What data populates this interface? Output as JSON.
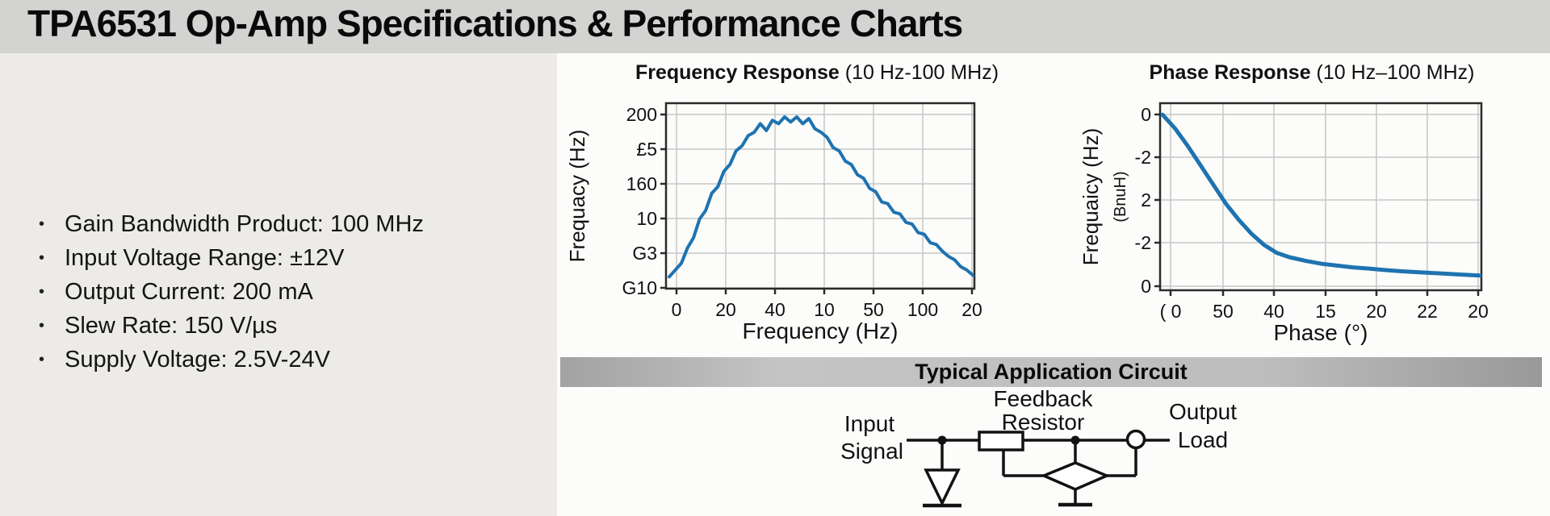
{
  "page": {
    "title": "TPA6531 Op-Amp Specifications & Performance Charts"
  },
  "specs": {
    "bullet": "•",
    "items": [
      "Gain Bandwidth Product: 100 MHz",
      "Input Voltage Range: ±12V",
      "Output Current: 200 mA",
      "Slew Rate: 150 V/µs",
      "Supply Voltage: 2.5V-24V"
    ]
  },
  "colors": {
    "titlebar_bg": "#d3d3d1",
    "panel_bg": "#ecebe8",
    "content_bg": "#fcfcfa",
    "banner_bg": "#b9b9b9",
    "curve_blue": "#1e73b0",
    "grid": "#c7c7c7",
    "frame": "#2b2b2b",
    "text": "#111111"
  },
  "chart_data": [
    {
      "type": "line",
      "title_bold": "Frequency Response",
      "title_rest": " (10 Hz-100 MHz)",
      "xlabel": "Frequency (Hz)",
      "ylabel": "Frequacy (Hz)",
      "x_ticks": [
        "0",
        "20",
        "40",
        "10",
        "50",
        "100",
        "20"
      ],
      "y_ticks": [
        "200",
        "£5",
        "160",
        "10",
        "G3",
        "G10"
      ],
      "grid": true,
      "legend": "none",
      "line_color": "#1e73b0",
      "points_x": [
        0,
        0.02,
        0.04,
        0.06,
        0.08,
        0.1,
        0.12,
        0.14,
        0.16,
        0.18,
        0.2,
        0.22,
        0.24,
        0.26,
        0.28,
        0.3,
        0.32,
        0.34,
        0.36,
        0.38,
        0.4,
        0.42,
        0.44,
        0.46,
        0.48,
        0.5,
        0.52,
        0.54,
        0.56,
        0.58,
        0.6,
        0.62,
        0.64,
        0.66,
        0.68,
        0.7,
        0.72,
        0.74,
        0.76,
        0.78,
        0.8,
        0.82,
        0.84,
        0.86,
        0.88,
        0.9,
        0.92,
        0.94,
        0.96,
        0.98,
        1.0
      ],
      "points_y": [
        0.06,
        0.1,
        0.14,
        0.23,
        0.29,
        0.4,
        0.45,
        0.55,
        0.59,
        0.68,
        0.72,
        0.8,
        0.83,
        0.89,
        0.91,
        0.96,
        0.92,
        0.98,
        0.96,
        1.0,
        0.97,
        1.0,
        0.96,
        0.99,
        0.93,
        0.91,
        0.88,
        0.82,
        0.8,
        0.74,
        0.72,
        0.66,
        0.64,
        0.58,
        0.56,
        0.5,
        0.49,
        0.44,
        0.43,
        0.38,
        0.37,
        0.32,
        0.31,
        0.26,
        0.25,
        0.21,
        0.18,
        0.16,
        0.12,
        0.1,
        0.07
      ]
    },
    {
      "type": "line",
      "title_bold": "Phase Response",
      "title_rest": " (10 Hz–100 MHz)",
      "xlabel": "Phase (°)",
      "ylabel": "Frequaicy (Hz)",
      "ylabel2": "(BnuH)",
      "x_ticks": [
        "( 0",
        "50",
        "40",
        "15",
        "20",
        "22",
        "20"
      ],
      "y_ticks": [
        "0",
        "-2",
        "2",
        "-2",
        "0"
      ],
      "grid": true,
      "legend": "none",
      "line_color": "#1e73b0",
      "points_x": [
        0,
        0.04,
        0.08,
        0.12,
        0.16,
        0.2,
        0.24,
        0.28,
        0.32,
        0.36,
        0.4,
        0.45,
        0.5,
        0.55,
        0.6,
        0.65,
        0.7,
        0.75,
        0.8,
        0.85,
        0.9,
        0.95,
        1.0
      ],
      "points_y": [
        0.99,
        0.91,
        0.81,
        0.7,
        0.59,
        0.48,
        0.39,
        0.31,
        0.245,
        0.2,
        0.175,
        0.155,
        0.138,
        0.127,
        0.117,
        0.11,
        0.102,
        0.095,
        0.09,
        0.085,
        0.08,
        0.075,
        0.07
      ]
    }
  ],
  "banner": {
    "title": "Typical Application Circuit"
  },
  "circuit": {
    "input_line1": "Input",
    "input_line2": "Signal",
    "feedback_line1": "Feedback",
    "feedback_line2": "Resistor",
    "output_line1": "Output",
    "output_line2": "Load"
  }
}
